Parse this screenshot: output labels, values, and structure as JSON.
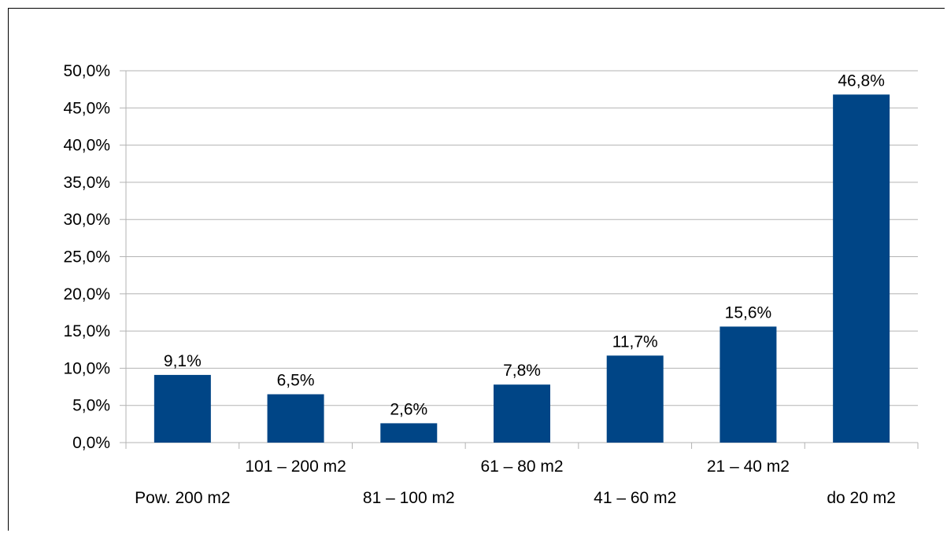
{
  "chart_data": {
    "type": "bar",
    "categories": [
      "Pow. 200 m2",
      "101 – 200 m2",
      "81 – 100 m2",
      "61 – 80 m2",
      "41 – 60 m2",
      "21 – 40 m2",
      "do 20 m2"
    ],
    "values": [
      9.1,
      6.5,
      2.6,
      7.8,
      11.7,
      15.6,
      46.8
    ],
    "value_labels": [
      "9,1%",
      "6,5%",
      "2,6%",
      "7,8%",
      "11,7%",
      "15,6%",
      "46,8%"
    ],
    "ylim": [
      0,
      50
    ],
    "y_ticks": [
      0,
      5,
      10,
      15,
      20,
      25,
      30,
      35,
      40,
      45,
      50
    ],
    "y_tick_labels": [
      "0,0%",
      "5,0%",
      "10,0%",
      "15,0%",
      "20,0%",
      "25,0%",
      "30,0%",
      "35,0%",
      "40,0%",
      "45,0%",
      "50,0%"
    ],
    "title": "",
    "xlabel": "",
    "ylabel": "",
    "grid": true,
    "legend": "none",
    "bar_color": "#004586",
    "gridline_color": "#b3b3b3"
  }
}
